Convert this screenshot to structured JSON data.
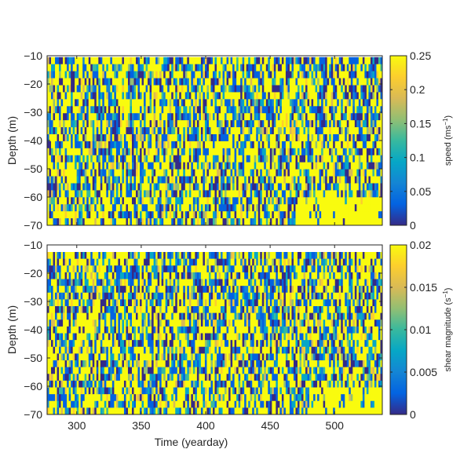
{
  "chart_data": [
    {
      "type": "heatmap",
      "title": "",
      "xlabel": "",
      "ylabel": "Depth (m)",
      "xlim": [
        277,
        537
      ],
      "ylim": [
        -70,
        -10
      ],
      "yticks": [
        -10,
        -20,
        -30,
        -40,
        -50,
        -60,
        -70
      ],
      "yticklabels": [
        "−10",
        "−20",
        "−30",
        "−40",
        "−50",
        "−60",
        "−70"
      ],
      "xticks": [
        300,
        350,
        400,
        450,
        500
      ],
      "xticklabels": [],
      "data_ymin": -70,
      "data_ymax": -10.5,
      "colorbar": {
        "label_base": "speed (ms",
        "label_sup": "−1",
        "label_tail": ")",
        "min": 0,
        "max": 0.25,
        "ticks": [
          0,
          0.05,
          0.1,
          0.15,
          0.2,
          0.25
        ],
        "ticklabels": [
          "0",
          "0.05",
          "0.1",
          "0.15",
          "0.2",
          "0.25"
        ]
      },
      "colormap": "parula",
      "pattern": "high-variance speed field, values mostly near 0 or saturated at 0.25; more saturation near the bottom after yearday ~470"
    },
    {
      "type": "heatmap",
      "title": "",
      "xlabel": "Time (yearday)",
      "ylabel": "Depth (m)",
      "xlim": [
        277,
        537
      ],
      "ylim": [
        -70,
        -10
      ],
      "yticks": [
        -10,
        -20,
        -30,
        -40,
        -50,
        -60,
        -70
      ],
      "yticklabels": [
        "−10",
        "−20",
        "−30",
        "−40",
        "−50",
        "−60",
        "−70"
      ],
      "xticks": [
        300,
        350,
        400,
        450,
        500
      ],
      "xticklabels": [
        "300",
        "350",
        "400",
        "450",
        "500"
      ],
      "data_ymin": -70,
      "data_ymax": -12.5,
      "colorbar": {
        "label_base": "shear magnitude (s",
        "label_sup": "−1",
        "label_tail": ")",
        "min": 0,
        "max": 0.02,
        "ticks": [
          0,
          0.005,
          0.01,
          0.015,
          0.02
        ],
        "ticklabels": [
          "0",
          "0.005",
          "0.01",
          "0.015",
          "0.02"
        ]
      },
      "colormap": "parula",
      "pattern": "shear magnitude mostly bimodal (near 0 or saturated at 0.02); saturated band near the bottom after yearday ~480"
    }
  ],
  "colors": {
    "parula": [
      "#352a87",
      "#0363e1",
      "#1485d4",
      "#06a7c6",
      "#38b99e",
      "#92bf73",
      "#d9ba56",
      "#fcce2e",
      "#f9fb0e"
    ],
    "axis": "#262626",
    "background": "#ffffff"
  }
}
